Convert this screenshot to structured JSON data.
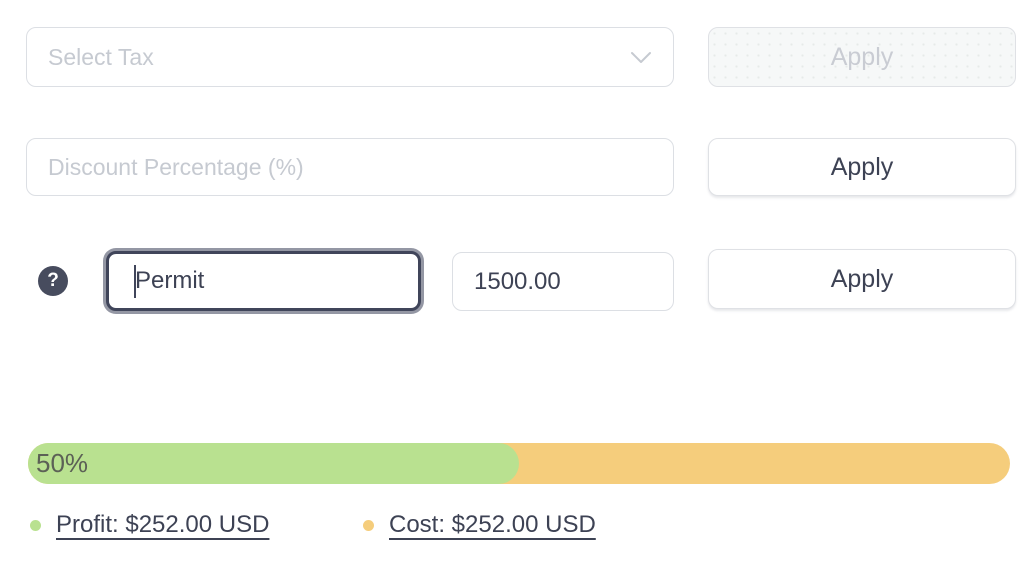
{
  "tax_row": {
    "select_placeholder": "Select Tax",
    "apply_label": "Apply"
  },
  "discount_row": {
    "input_placeholder": "Discount Percentage (%)",
    "apply_label": "Apply"
  },
  "fee_row": {
    "help_glyph": "?",
    "name_value": "Permit",
    "amount_value": "1500.00",
    "apply_label": "Apply"
  },
  "progress": {
    "label": "50%",
    "percent": 50,
    "profit_color": "#b9e190",
    "cost_color": "#f5cd7c"
  },
  "legend": {
    "profit": {
      "label": "Profit: $252.00 USD",
      "dot_color": "#b9e190"
    },
    "cost": {
      "label": "Cost: $252.00 USD",
      "dot_color": "#f5cd7c"
    }
  }
}
